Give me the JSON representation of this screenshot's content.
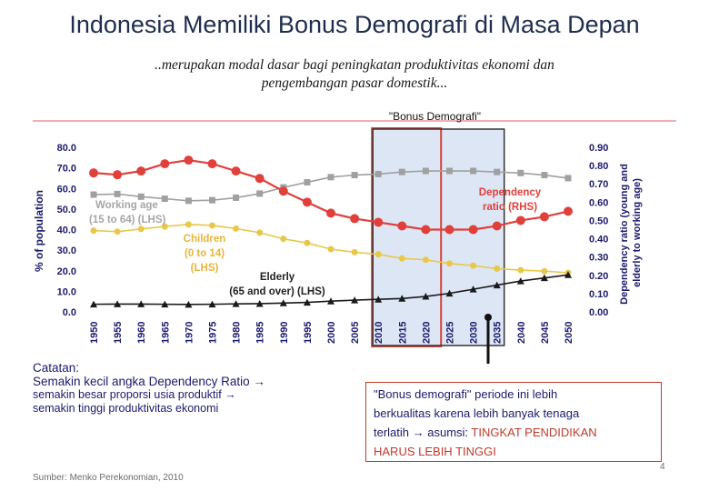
{
  "slide": {
    "title": "Indonesia Memiliki Bonus Demografi di Masa Depan",
    "subtitle_line1": "..merupakan modal dasar bagi peningkatan produktivitas ekonomi dan",
    "subtitle_line2": "pengembangan pasar domestik...",
    "note_title": "Catatan:",
    "note_line1": "Semakin kecil angka Dependency Ratio →",
    "note_line2": "semakin besar proporsi usia produktif →",
    "note_line3": "semakin tinggi produktivitas ekonomi",
    "bonus_line1": "\"Bonus demografi\" periode ini lebih",
    "bonus_line2": "berkualitas karena lebih banyak tenaga",
    "bonus_line3_a": "terlatih → asumsi: ",
    "bonus_line3_b": "TINGKAT PENDIDIKAN",
    "bonus_line4": "HARUS LEBIH TINGGI",
    "source": "Sumber: Menko Perekonomian, 2010",
    "page_number": "4"
  },
  "chart_data": {
    "type": "line",
    "x": [
      1950,
      1955,
      1960,
      1965,
      1970,
      1975,
      1980,
      1985,
      1990,
      1995,
      2000,
      2005,
      2010,
      2015,
      2020,
      2025,
      2030,
      2035,
      2040,
      2045,
      2050
    ],
    "ylabel": "% of population",
    "ylabel_right": "Dependency ratio (young and elderly to working age)",
    "ylim": [
      0,
      80
    ],
    "ylim_right": [
      0,
      0.9
    ],
    "yticks": [
      "0.0",
      "10.0",
      "20.0",
      "30.0",
      "40.0",
      "50.0",
      "60.0",
      "70.0",
      "80.0"
    ],
    "yticks_right": [
      "0.00",
      "0.10",
      "0.20",
      "0.30",
      "0.40",
      "0.50",
      "0.60",
      "0.70",
      "0.80",
      "0.90"
    ],
    "highlight": {
      "label": "\"Bonus Demografi\"",
      "from": 2010,
      "to": 2035
    },
    "series": [
      {
        "name": "Working age (15 to 64) (LHS)",
        "axis": "left",
        "color": "#a0a0a0",
        "marker": "square",
        "values": [
          57.0,
          57.3,
          56.0,
          55.0,
          54.0,
          54.3,
          55.5,
          57.5,
          60.5,
          63.0,
          65.5,
          66.5,
          67.0,
          68.0,
          68.5,
          68.5,
          68.5,
          68.0,
          67.5,
          66.5,
          65.0
        ]
      },
      {
        "name": "Children (0 to 14) (LHS)",
        "axis": "left",
        "color": "#e8c84a",
        "marker": "circle",
        "values": [
          39.5,
          39.0,
          40.3,
          41.5,
          42.5,
          42.0,
          40.5,
          38.5,
          35.5,
          33.5,
          30.5,
          29.0,
          28.0,
          26.0,
          25.3,
          23.5,
          22.5,
          21.0,
          20.3,
          19.8,
          19.0
        ]
      },
      {
        "name": "Elderly (65 and over) (LHS)",
        "axis": "left",
        "color": "#1a1a1a",
        "marker": "triangle",
        "values": [
          3.7,
          3.8,
          3.8,
          3.7,
          3.6,
          3.7,
          3.9,
          4.0,
          4.3,
          4.6,
          5.2,
          5.7,
          6.1,
          6.5,
          7.5,
          9.0,
          11.0,
          13.0,
          15.0,
          16.5,
          18.0
        ]
      },
      {
        "name": "Dependency ratio (RHS)",
        "axis": "right",
        "color": "#e0403a",
        "marker": "circle",
        "values": [
          0.76,
          0.75,
          0.77,
          0.81,
          0.83,
          0.81,
          0.77,
          0.73,
          0.66,
          0.6,
          0.54,
          0.51,
          0.49,
          0.47,
          0.45,
          0.45,
          0.45,
          0.47,
          0.5,
          0.52,
          0.55
        ]
      }
    ],
    "annotations": {
      "working_age_1": "Working age",
      "working_age_2": "(15 to 64) (LHS)",
      "children_1": "Children",
      "children_2": "(0 to 14)",
      "children_3": "(LHS)",
      "elderly_1": "Elderly",
      "elderly_2": "(65 and over) (LHS)",
      "dependency_1": "Dependency",
      "dependency_2": "ratio (RHS)"
    },
    "colors": {
      "highlight_fill": "#dde6f5",
      "highlight_border": "#d0433b",
      "top_line": "#e06060"
    }
  }
}
